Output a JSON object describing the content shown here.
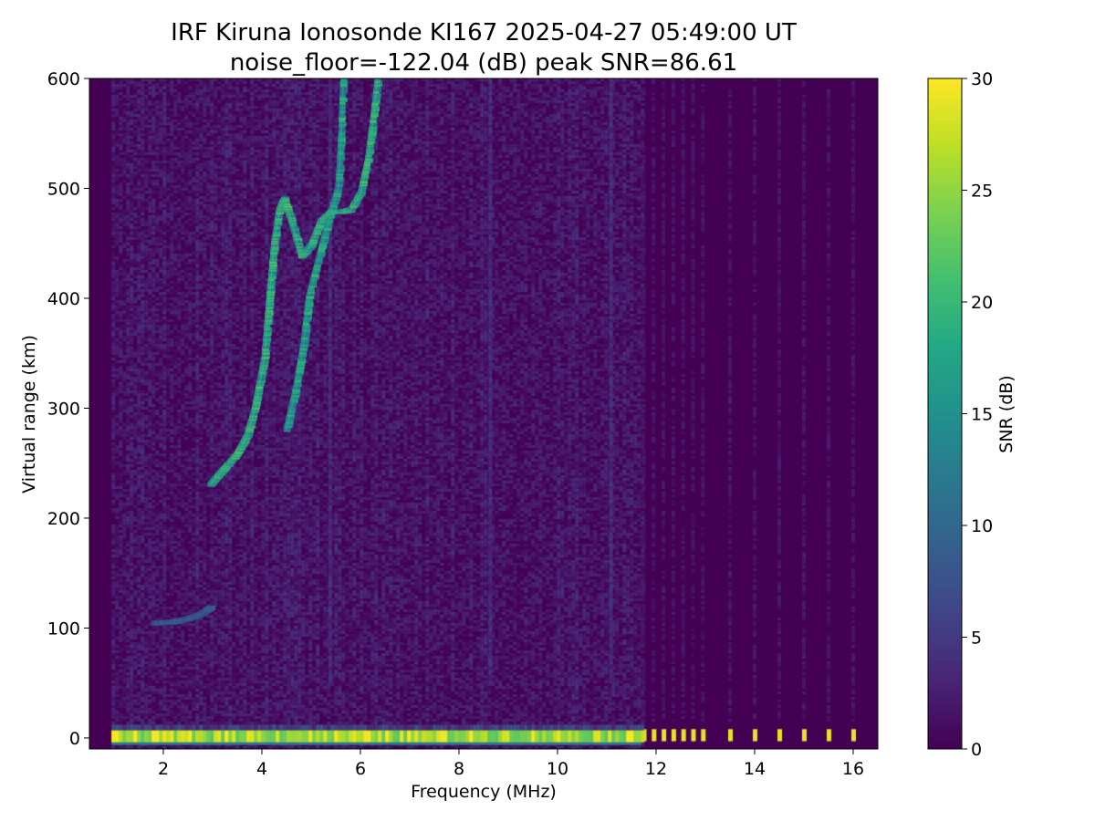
{
  "chart_data": {
    "type": "heatmap",
    "title": "IRF Kiruna Ionosonde KI167 2025-04-27 05:49:00  UT",
    "subtitle": "noise_floor=-122.04 (dB) peak SNR=86.61",
    "xlabel": "Frequency (MHz)",
    "ylabel": "Virtual range (km)",
    "xlim": [
      0.5,
      16.5
    ],
    "ylim": [
      -10,
      600
    ],
    "xticks": [
      2,
      4,
      6,
      8,
      10,
      12,
      14,
      16
    ],
    "yticks": [
      0,
      100,
      200,
      300,
      400,
      500,
      600
    ],
    "colorbar": {
      "label": "SNR (dB)",
      "range": [
        0,
        30
      ],
      "ticks": [
        0,
        5,
        10,
        15,
        20,
        25,
        30
      ],
      "colormap": "viridis"
    },
    "data_freq_range_mhz": [
      0.95,
      16.0
    ],
    "ground_echo_range_km": 0,
    "traces": [
      {
        "name": "E-layer",
        "points": [
          [
            1.8,
            104
          ],
          [
            2.2,
            105
          ],
          [
            2.5,
            108
          ],
          [
            2.75,
            112
          ],
          [
            2.95,
            118
          ]
        ],
        "snr_db": 9
      },
      {
        "name": "F o-mode",
        "points": [
          [
            2.95,
            230
          ],
          [
            3.2,
            243
          ],
          [
            3.5,
            258
          ],
          [
            3.7,
            275
          ],
          [
            3.85,
            298
          ],
          [
            3.95,
            322
          ],
          [
            4.05,
            345
          ],
          [
            4.1,
            372
          ],
          [
            4.15,
            400
          ],
          [
            4.2,
            425
          ],
          [
            4.25,
            450
          ],
          [
            4.35,
            480
          ],
          [
            4.45,
            490
          ],
          [
            4.6,
            470
          ],
          [
            4.8,
            438
          ],
          [
            5.0,
            448
          ],
          [
            5.2,
            470
          ],
          [
            5.4,
            478
          ],
          [
            5.6,
            478
          ],
          [
            5.8,
            480
          ],
          [
            6.0,
            495
          ],
          [
            6.15,
            525
          ],
          [
            6.25,
            560
          ],
          [
            6.35,
            600
          ]
        ],
        "snr_db": 20
      },
      {
        "name": "F x-mode",
        "points": [
          [
            4.5,
            280
          ],
          [
            4.7,
            320
          ],
          [
            4.85,
            360
          ],
          [
            4.95,
            400
          ],
          [
            5.15,
            435
          ],
          [
            5.35,
            470
          ],
          [
            5.55,
            500
          ],
          [
            5.6,
            540
          ],
          [
            5.65,
            600
          ]
        ],
        "snr_db": 18
      }
    ],
    "faint_vertical_lines_mhz": [
      5.35,
      8.6,
      11.05
    ],
    "high_band_channels_mhz": [
      11.75,
      11.95,
      12.15,
      12.35,
      12.55,
      12.75,
      12.95,
      13.5,
      14.0,
      14.5,
      15.0,
      15.5,
      16.0
    ]
  }
}
